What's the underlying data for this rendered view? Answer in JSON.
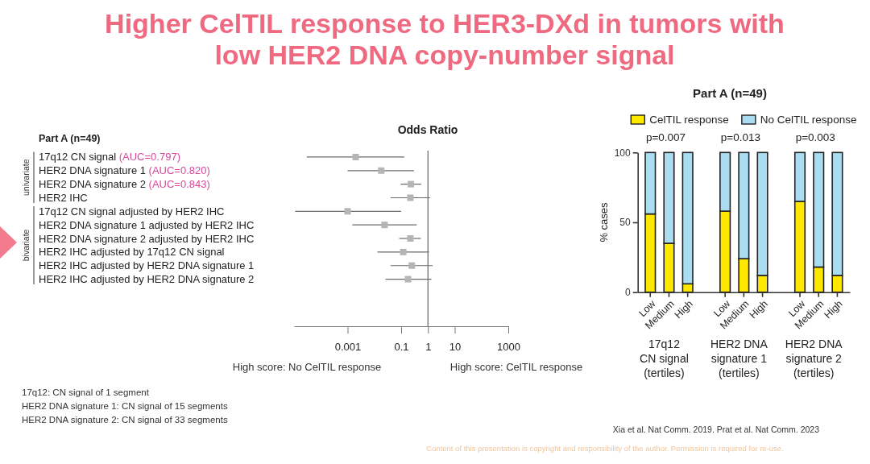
{
  "chart_data": [
    {
      "type": "scatter",
      "title": "Higher CelTIL response to HER3-DXd in tumors with low HER2 DNA copy-number signal",
      "subtitle": "Part A (n=49)",
      "xlabel": "Odds Ratio",
      "orientation": "horizontal",
      "categories": [
        "17q12 CN signal (AUC=0.797)",
        "HER2 DNA signature 1 (AUC=0.820)",
        "HER2 DNA signature 2 (AUC=0.843)",
        "HER2 IHC",
        "17q12 CN signal adjusted by HER2 IHC",
        "HER2 DNA signature 1 adjusted by HER2 IHC",
        "HER2 DNA signature 2 adjusted by HER2 IHC",
        "HER2 IHC adjusted by 17q12 CN signal",
        "HER2 IHC adjusted by HER2 DNA signature 1",
        "HER2 IHC adjusted by HER2 DNA signature 2"
      ],
      "series": [
        {
          "color": "#b5b5b5",
          "values": [
            0.002,
            0.018,
            0.23,
            0.22,
            0.001,
            0.024,
            0.22,
            0.12,
            0.25,
            0.18
          ],
          "errors": [
            [
              3e-05,
              0.13
            ],
            [
              0.001,
              0.3
            ],
            [
              0.095,
              0.56
            ],
            [
              0.04,
              1.2
            ],
            [
              1.1e-05,
              0.1
            ],
            [
              0.0015,
              0.38
            ],
            [
              0.085,
              0.54
            ],
            [
              0.013,
              1.1
            ],
            [
              0.04,
              1.5
            ],
            [
              0.026,
              1.35
            ]
          ]
        }
      ],
      "log": "x",
      "xlim": [
        1e-05,
        1000
      ],
      "xticks": [
        0.001,
        0.1,
        1,
        10,
        1000
      ],
      "marker": "square",
      "ref_lines": [
        {
          "axis": "x",
          "value": 1,
          "color": "#666666"
        }
      ],
      "annotations": [
        "univariate",
        "bivariate",
        "High score: No CelTIL response",
        "High score: CelTIL response",
        "17q12: CN signal of 1 segment",
        "HER2 DNA signature 1: CN signal of 15 segments",
        "HER2 DNA signature 2: CN signal of 33 segments",
        "Xia et al. Nat Comm. 2019. Prat et al. Nat Comm. 2023",
        "Content of this presentation is copyright and responsibility of the author. Permission is required for re-use."
      ]
    },
    {
      "type": "bar",
      "stacked": true,
      "title": "Part A (n=49)",
      "categories": [
        "Low",
        "Medium",
        "High",
        null,
        "Low",
        "Medium",
        "High",
        null,
        "Low",
        "Medium",
        "High"
      ],
      "series": [
        {
          "name": "CelTIL response",
          "color": "#ffe800",
          "values": [
            56,
            35,
            6,
            null,
            58,
            24,
            12,
            null,
            65,
            18,
            12
          ]
        },
        {
          "name": "No CelTIL response",
          "color": "#aadcf2",
          "values": [
            44,
            65,
            94,
            null,
            42,
            76,
            88,
            null,
            35,
            82,
            88
          ]
        }
      ],
      "ylim": [
        0,
        100
      ],
      "yticks": [
        0,
        50,
        100
      ],
      "ylabel": "% cases",
      "legend": "top",
      "annotations": [
        "p=0.007",
        "p=0.013",
        "p=0.003",
        "17q12\nCN signal\n(tertiles)",
        "HER2 DNA\nsignature 1\n(tertiles)",
        "HER2 DNA\nsignature 2\n(tertiles)"
      ]
    }
  ]
}
